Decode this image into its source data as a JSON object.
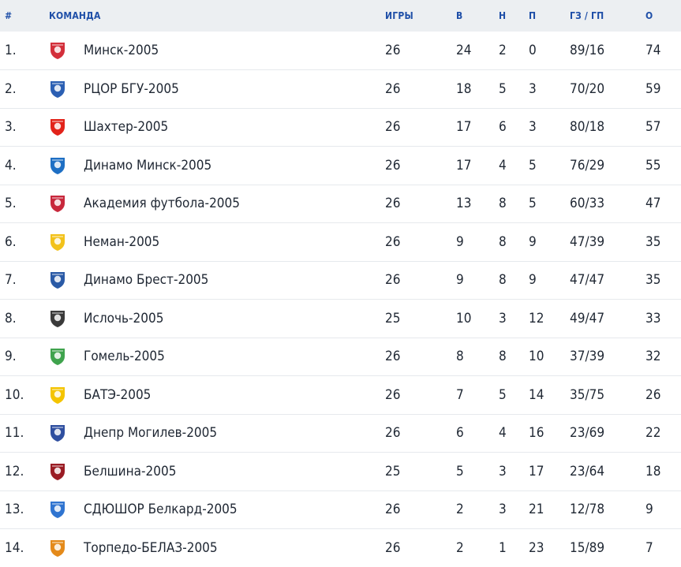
{
  "header": {
    "pos": "#",
    "team": "КОМАНДА",
    "games": "ИГРЫ",
    "wins": "В",
    "draws": "Н",
    "losses": "П",
    "goals": "ГЗ / ГП",
    "points": "О"
  },
  "rows": [
    {
      "pos": "1.",
      "team": "Минск-2005",
      "games": "26",
      "w": "24",
      "d": "2",
      "l": "0",
      "goals": "89/16",
      "pts": "74",
      "logo_color": "#d32f3a",
      "logo_icon": "minsk-logo-icon"
    },
    {
      "pos": "2.",
      "team": "РЦОР БГУ-2005",
      "games": "26",
      "w": "18",
      "d": "5",
      "l": "3",
      "goals": "70/20",
      "pts": "59",
      "logo_color": "#2b5fb3",
      "logo_icon": "bgu-logo-icon"
    },
    {
      "pos": "3.",
      "team": "Шахтер-2005",
      "games": "26",
      "w": "17",
      "d": "6",
      "l": "3",
      "goals": "80/18",
      "pts": "57",
      "logo_color": "#e2231a",
      "logo_icon": "shakhtyor-logo-icon"
    },
    {
      "pos": "4.",
      "team": "Динамо Минск-2005",
      "games": "26",
      "w": "17",
      "d": "4",
      "l": "5",
      "goals": "76/29",
      "pts": "55",
      "logo_color": "#1e6fc4",
      "logo_icon": "dinamo-minsk-logo-icon"
    },
    {
      "pos": "5.",
      "team": "Академия футбола-2005",
      "games": "26",
      "w": "13",
      "d": "8",
      "l": "5",
      "goals": "60/33",
      "pts": "47",
      "logo_color": "#c8283c",
      "logo_icon": "academy-logo-icon"
    },
    {
      "pos": "6.",
      "team": "Неман-2005",
      "games": "26",
      "w": "9",
      "d": "8",
      "l": "9",
      "goals": "47/39",
      "pts": "35",
      "logo_color": "#f2c21b",
      "logo_icon": "neman-logo-icon"
    },
    {
      "pos": "7.",
      "team": "Динамо Брест-2005",
      "games": "26",
      "w": "9",
      "d": "8",
      "l": "9",
      "goals": "47/47",
      "pts": "35",
      "logo_color": "#2a5aa6",
      "logo_icon": "dinamo-brest-logo-icon"
    },
    {
      "pos": "8.",
      "team": "Ислочь-2005",
      "games": "25",
      "w": "10",
      "d": "3",
      "l": "12",
      "goals": "49/47",
      "pts": "33",
      "logo_color": "#3a3a3a",
      "logo_icon": "isloch-logo-icon"
    },
    {
      "pos": "9.",
      "team": "Гомель-2005",
      "games": "26",
      "w": "8",
      "d": "8",
      "l": "10",
      "goals": "37/39",
      "pts": "32",
      "logo_color": "#3fa34d",
      "logo_icon": "gomel-logo-icon"
    },
    {
      "pos": "10.",
      "team": "БАТЭ-2005",
      "games": "26",
      "w": "7",
      "d": "5",
      "l": "14",
      "goals": "35/75",
      "pts": "26",
      "logo_color": "#f4c400",
      "logo_icon": "bate-logo-icon"
    },
    {
      "pos": "11.",
      "team": "Днепр Могилев-2005",
      "games": "26",
      "w": "6",
      "d": "4",
      "l": "16",
      "goals": "23/69",
      "pts": "22",
      "logo_color": "#2f4fa0",
      "logo_icon": "dnepr-logo-icon"
    },
    {
      "pos": "12.",
      "team": "Белшина-2005",
      "games": "25",
      "w": "5",
      "d": "3",
      "l": "17",
      "goals": "23/64",
      "pts": "18",
      "logo_color": "#9a1c24",
      "logo_icon": "belshina-logo-icon"
    },
    {
      "pos": "13.",
      "team": "СДЮШОР Белкард-2005",
      "games": "26",
      "w": "2",
      "d": "3",
      "l": "21",
      "goals": "12/78",
      "pts": "9",
      "logo_color": "#2f74d0",
      "logo_icon": "belkard-logo-icon"
    },
    {
      "pos": "14.",
      "team": "Торпедо-БЕЛАЗ-2005",
      "games": "26",
      "w": "2",
      "d": "1",
      "l": "23",
      "goals": "15/89",
      "pts": "7",
      "logo_color": "#e48a1a",
      "logo_icon": "torpedo-logo-icon"
    }
  ]
}
